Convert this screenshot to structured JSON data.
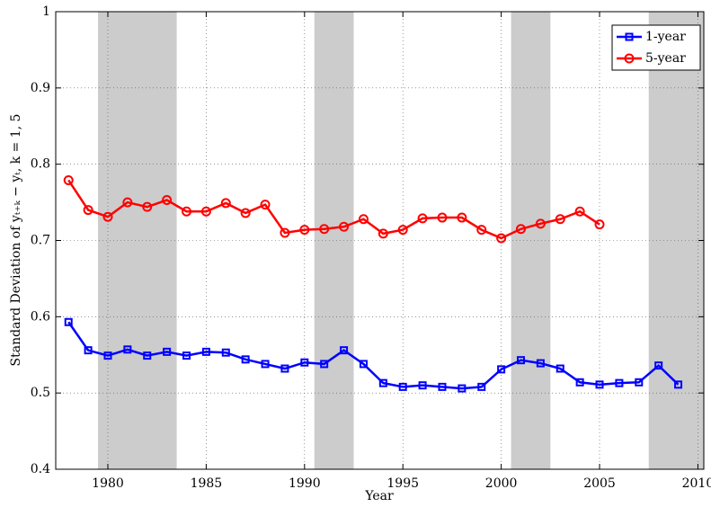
{
  "chart_data": {
    "type": "line",
    "x_label": "Year",
    "y_label": "Standard Deviation of yₜ₊ₖ − yₜ,   k = 1, 5",
    "xlim": [
      1977.35,
      2010.3
    ],
    "xticks": [
      1980,
      1985,
      1990,
      1995,
      2000,
      2005,
      2010
    ],
    "ylim": [
      0.4,
      1
    ],
    "yticks": [
      0.4,
      0.5,
      0.6,
      0.7,
      0.8,
      0.9,
      1
    ],
    "grid": true,
    "legend": "upper-right",
    "shaded_periods": [
      [
        1979.5,
        1983.5
      ],
      [
        1990.5,
        1992.5
      ],
      [
        2000.5,
        2002.5
      ],
      [
        2007.5,
        2010.3
      ]
    ],
    "shade_color": "#cccccc",
    "series": [
      {
        "name": "1-year",
        "color": "#0000ff",
        "marker": "square",
        "x": [
          1978,
          1979,
          1980,
          1981,
          1982,
          1983,
          1984,
          1985,
          1986,
          1987,
          1988,
          1989,
          1990,
          1991,
          1992,
          1993,
          1994,
          1995,
          1996,
          1997,
          1998,
          1999,
          2000,
          2001,
          2002,
          2003,
          2004,
          2005,
          2006,
          2007,
          2008,
          2009
        ],
        "values": [
          0.593,
          0.556,
          0.549,
          0.557,
          0.549,
          0.554,
          0.549,
          0.554,
          0.553,
          0.544,
          0.538,
          0.532,
          0.54,
          0.538,
          0.556,
          0.538,
          0.513,
          0.508,
          0.51,
          0.508,
          0.506,
          0.508,
          0.531,
          0.543,
          0.539,
          0.532,
          0.514,
          0.511,
          0.513,
          0.514,
          0.536,
          0.511
        ]
      },
      {
        "name": "5-year",
        "color": "#ff0000",
        "marker": "circle",
        "x": [
          1978,
          1979,
          1980,
          1981,
          1982,
          1983,
          1984,
          1985,
          1986,
          1987,
          1988,
          1989,
          1990,
          1991,
          1992,
          1993,
          1994,
          1995,
          1996,
          1997,
          1998,
          1999,
          2000,
          2001,
          2002,
          2003,
          2004,
          2005
        ],
        "values": [
          0.779,
          0.74,
          0.731,
          0.75,
          0.744,
          0.753,
          0.738,
          0.738,
          0.749,
          0.736,
          0.747,
          0.71,
          0.714,
          0.715,
          0.718,
          0.728,
          0.709,
          0.714,
          0.729,
          0.73,
          0.73,
          0.714,
          0.703,
          0.715,
          0.722,
          0.728,
          0.738,
          0.721
        ]
      }
    ]
  }
}
